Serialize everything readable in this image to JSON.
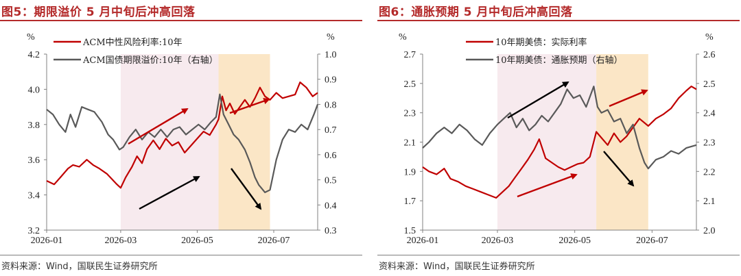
{
  "panels": [
    {
      "title": "图5：期限溢价 5 月中旬后冲高回落",
      "source": "资料来源：Wind，国联民生证券研究所",
      "unit_left": "%",
      "unit_right": "%"
    },
    {
      "title": "图6：通胀预期 5 月中旬后冲高回落",
      "source": "资料来源：Wind，国联民生证券研究所",
      "unit_left": "%",
      "unit_right": "%"
    }
  ],
  "colors": {
    "red": "#c00000",
    "gray": "#595959",
    "black": "#000000",
    "pink_band": "#f7eaee",
    "orange_band": "#fbe6c6"
  },
  "chart_data": [
    {
      "type": "line",
      "x_ticks": [
        "2026-01",
        "2026-03",
        "2026-05",
        "2026-07"
      ],
      "x_range": [
        "2026-01-01",
        "2026-08-05"
      ],
      "y_left": {
        "lim": [
          3.2,
          4.2
        ],
        "ticks": [
          "3.2",
          "3.4",
          "3.6",
          "3.8",
          "4.0",
          "4.2"
        ]
      },
      "y_right": {
        "lim": [
          0.3,
          1.0
        ],
        "ticks": [
          "0.3",
          "0.4",
          "0.5",
          "0.6",
          "0.7",
          "0.8",
          "0.9",
          "1.0"
        ]
      },
      "shaded": [
        {
          "from": "2026-03-01",
          "to": "2026-05-18",
          "color": "pink"
        },
        {
          "from": "2026-05-18",
          "to": "2026-06-28",
          "color": "orange"
        }
      ],
      "series": [
        {
          "name": "ACM中性风险利率:10年",
          "axis": "left",
          "color": "red",
          "points": [
            [
              "2026-01-01",
              3.48
            ],
            [
              "2026-01-07",
              3.46
            ],
            [
              "2026-01-12",
              3.5
            ],
            [
              "2026-01-18",
              3.55
            ],
            [
              "2026-01-22",
              3.57
            ],
            [
              "2026-01-27",
              3.56
            ],
            [
              "2026-02-02",
              3.6
            ],
            [
              "2026-02-07",
              3.57
            ],
            [
              "2026-02-12",
              3.55
            ],
            [
              "2026-02-18",
              3.52
            ],
            [
              "2026-02-22",
              3.49
            ],
            [
              "2026-02-26",
              3.46
            ],
            [
              "2026-03-01",
              3.44
            ],
            [
              "2026-03-05",
              3.5
            ],
            [
              "2026-03-10",
              3.56
            ],
            [
              "2026-03-14",
              3.62
            ],
            [
              "2026-03-18",
              3.58
            ],
            [
              "2026-03-22",
              3.66
            ],
            [
              "2026-03-27",
              3.71
            ],
            [
              "2026-04-01",
              3.66
            ],
            [
              "2026-04-06",
              3.72
            ],
            [
              "2026-04-11",
              3.68
            ],
            [
              "2026-04-16",
              3.7
            ],
            [
              "2026-04-21",
              3.64
            ],
            [
              "2026-04-26",
              3.68
            ],
            [
              "2026-05-01",
              3.72
            ],
            [
              "2026-05-06",
              3.76
            ],
            [
              "2026-05-11",
              3.74
            ],
            [
              "2026-05-16",
              3.8
            ],
            [
              "2026-05-18",
              3.83
            ],
            [
              "2026-05-21",
              3.96
            ],
            [
              "2026-05-24",
              3.88
            ],
            [
              "2026-05-27",
              3.92
            ],
            [
              "2026-05-31",
              3.86
            ],
            [
              "2026-06-04",
              3.9
            ],
            [
              "2026-06-08",
              3.94
            ],
            [
              "2026-06-12",
              3.9
            ],
            [
              "2026-06-16",
              3.95
            ],
            [
              "2026-06-20",
              4.01
            ],
            [
              "2026-06-24",
              3.96
            ],
            [
              "2026-06-28",
              3.94
            ],
            [
              "2026-07-03",
              3.98
            ],
            [
              "2026-07-08",
              3.95
            ],
            [
              "2026-07-13",
              3.96
            ],
            [
              "2026-07-18",
              3.97
            ],
            [
              "2026-07-22",
              4.04
            ],
            [
              "2026-07-27",
              4.01
            ],
            [
              "2026-08-01",
              3.96
            ],
            [
              "2026-08-05",
              3.98
            ]
          ]
        },
        {
          "name": "ACM国债期限溢价:10年（右轴）",
          "axis": "right",
          "color": "gray",
          "points": [
            [
              "2026-01-01",
              0.78
            ],
            [
              "2026-01-06",
              0.76
            ],
            [
              "2026-01-11",
              0.72
            ],
            [
              "2026-01-16",
              0.69
            ],
            [
              "2026-01-20",
              0.76
            ],
            [
              "2026-01-24",
              0.71
            ],
            [
              "2026-01-29",
              0.79
            ],
            [
              "2026-02-03",
              0.78
            ],
            [
              "2026-02-08",
              0.77
            ],
            [
              "2026-02-14",
              0.73
            ],
            [
              "2026-02-19",
              0.68
            ],
            [
              "2026-02-23",
              0.66
            ],
            [
              "2026-02-28",
              0.62
            ],
            [
              "2026-03-03",
              0.63
            ],
            [
              "2026-03-08",
              0.67
            ],
            [
              "2026-03-13",
              0.7
            ],
            [
              "2026-03-18",
              0.66
            ],
            [
              "2026-03-23",
              0.69
            ],
            [
              "2026-03-28",
              0.67
            ],
            [
              "2026-04-02",
              0.7
            ],
            [
              "2026-04-07",
              0.67
            ],
            [
              "2026-04-12",
              0.7
            ],
            [
              "2026-04-17",
              0.71
            ],
            [
              "2026-04-22",
              0.68
            ],
            [
              "2026-04-27",
              0.7
            ],
            [
              "2026-05-02",
              0.72
            ],
            [
              "2026-05-07",
              0.7
            ],
            [
              "2026-05-12",
              0.73
            ],
            [
              "2026-05-16",
              0.75
            ],
            [
              "2026-05-19",
              0.84
            ],
            [
              "2026-05-22",
              0.76
            ],
            [
              "2026-05-26",
              0.72
            ],
            [
              "2026-05-30",
              0.68
            ],
            [
              "2026-06-03",
              0.66
            ],
            [
              "2026-06-08",
              0.62
            ],
            [
              "2026-06-12",
              0.57
            ],
            [
              "2026-06-16",
              0.51
            ],
            [
              "2026-06-19",
              0.48
            ],
            [
              "2026-06-24",
              0.45
            ],
            [
              "2026-06-28",
              0.46
            ],
            [
              "2026-07-03",
              0.58
            ],
            [
              "2026-07-08",
              0.66
            ],
            [
              "2026-07-13",
              0.7
            ],
            [
              "2026-07-18",
              0.69
            ],
            [
              "2026-07-23",
              0.72
            ],
            [
              "2026-07-28",
              0.7
            ],
            [
              "2026-08-02",
              0.76
            ],
            [
              "2026-08-05",
              0.8
            ]
          ]
        }
      ]
    },
    {
      "type": "line",
      "x_ticks": [
        "2026-01",
        "2026-03",
        "2026-05",
        "2026-07"
      ],
      "x_range": [
        "2026-01-01",
        "2026-08-05"
      ],
      "y_left": {
        "lim": [
          1.5,
          2.7
        ],
        "ticks": [
          "1.5",
          "1.7",
          "1.9",
          "2.1",
          "2.3",
          "2.5",
          "2.7"
        ]
      },
      "y_right": {
        "lim": [
          2.0,
          2.6
        ],
        "ticks": [
          "2.0",
          "2.1",
          "2.2",
          "2.3",
          "2.4",
          "2.5",
          "2.6"
        ]
      },
      "shaded": [
        {
          "from": "2026-03-01",
          "to": "2026-05-18",
          "color": "pink"
        },
        {
          "from": "2026-05-18",
          "to": "2026-06-28",
          "color": "orange"
        }
      ],
      "series": [
        {
          "name": "10年期美债：实际利率",
          "axis": "left",
          "color": "red",
          "points": [
            [
              "2026-01-01",
              1.93
            ],
            [
              "2026-01-06",
              1.9
            ],
            [
              "2026-01-12",
              1.88
            ],
            [
              "2026-01-18",
              1.92
            ],
            [
              "2026-01-23",
              1.85
            ],
            [
              "2026-01-29",
              1.83
            ],
            [
              "2026-02-04",
              1.8
            ],
            [
              "2026-02-10",
              1.78
            ],
            [
              "2026-02-16",
              1.76
            ],
            [
              "2026-02-22",
              1.74
            ],
            [
              "2026-02-28",
              1.72
            ],
            [
              "2026-03-05",
              1.76
            ],
            [
              "2026-03-10",
              1.8
            ],
            [
              "2026-03-15",
              1.86
            ],
            [
              "2026-03-20",
              1.92
            ],
            [
              "2026-03-25",
              1.98
            ],
            [
              "2026-03-30",
              2.05
            ],
            [
              "2026-04-03",
              2.12
            ],
            [
              "2026-04-08",
              1.99
            ],
            [
              "2026-04-13",
              1.96
            ],
            [
              "2026-04-18",
              1.93
            ],
            [
              "2026-04-23",
              1.91
            ],
            [
              "2026-04-28",
              1.93
            ],
            [
              "2026-05-03",
              1.95
            ],
            [
              "2026-05-08",
              1.96
            ],
            [
              "2026-05-13",
              2.0
            ],
            [
              "2026-05-18",
              2.17
            ],
            [
              "2026-05-22",
              2.13
            ],
            [
              "2026-05-27",
              2.08
            ],
            [
              "2026-06-01",
              2.16
            ],
            [
              "2026-06-06",
              2.1
            ],
            [
              "2026-06-11",
              2.14
            ],
            [
              "2026-06-16",
              2.2
            ],
            [
              "2026-06-21",
              2.26
            ],
            [
              "2026-06-28",
              2.21
            ],
            [
              "2026-07-04",
              2.26
            ],
            [
              "2026-07-10",
              2.29
            ],
            [
              "2026-07-16",
              2.33
            ],
            [
              "2026-07-22",
              2.4
            ],
            [
              "2026-07-28",
              2.45
            ],
            [
              "2026-08-01",
              2.48
            ],
            [
              "2026-08-05",
              2.46
            ]
          ]
        },
        {
          "name": "10年期美债：通胀预期（右轴）",
          "axis": "right",
          "color": "gray",
          "points": [
            [
              "2026-01-01",
              2.28
            ],
            [
              "2026-01-06",
              2.3
            ],
            [
              "2026-01-12",
              2.33
            ],
            [
              "2026-01-18",
              2.35
            ],
            [
              "2026-01-24",
              2.33
            ],
            [
              "2026-01-30",
              2.36
            ],
            [
              "2026-02-05",
              2.34
            ],
            [
              "2026-02-11",
              2.31
            ],
            [
              "2026-02-17",
              2.29
            ],
            [
              "2026-02-23",
              2.33
            ],
            [
              "2026-03-01",
              2.36
            ],
            [
              "2026-03-06",
              2.38
            ],
            [
              "2026-03-11",
              2.4
            ],
            [
              "2026-03-16",
              2.35
            ],
            [
              "2026-03-21",
              2.38
            ],
            [
              "2026-03-26",
              2.34
            ],
            [
              "2026-03-31",
              2.36
            ],
            [
              "2026-04-05",
              2.39
            ],
            [
              "2026-04-10",
              2.37
            ],
            [
              "2026-04-15",
              2.4
            ],
            [
              "2026-04-20",
              2.43
            ],
            [
              "2026-04-25",
              2.48
            ],
            [
              "2026-04-30",
              2.45
            ],
            [
              "2026-05-05",
              2.46
            ],
            [
              "2026-05-10",
              2.42
            ],
            [
              "2026-05-16",
              2.49
            ],
            [
              "2026-05-19",
              2.42
            ],
            [
              "2026-05-22",
              2.4
            ],
            [
              "2026-05-27",
              2.41
            ],
            [
              "2026-06-01",
              2.37
            ],
            [
              "2026-06-06",
              2.38
            ],
            [
              "2026-06-11",
              2.33
            ],
            [
              "2026-06-16",
              2.36
            ],
            [
              "2026-06-21",
              2.28
            ],
            [
              "2026-06-25",
              2.23
            ],
            [
              "2026-06-28",
              2.21
            ],
            [
              "2026-07-04",
              2.24
            ],
            [
              "2026-07-10",
              2.25
            ],
            [
              "2026-07-16",
              2.27
            ],
            [
              "2026-07-22",
              2.26
            ],
            [
              "2026-07-28",
              2.28
            ],
            [
              "2026-08-05",
              2.29
            ]
          ]
        }
      ]
    }
  ]
}
